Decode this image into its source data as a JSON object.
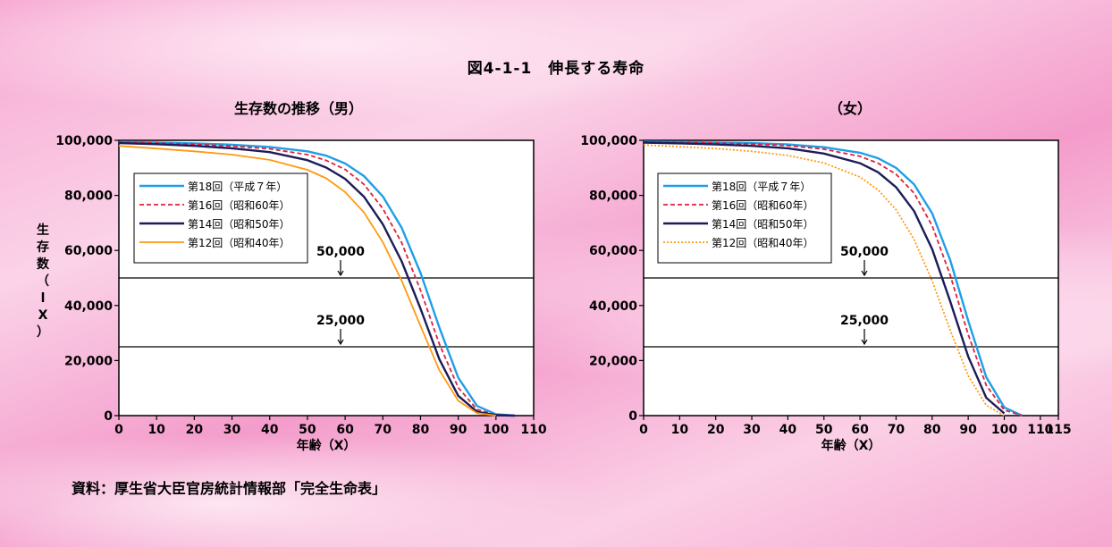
{
  "title": "図4-1-1　伸長する寿命",
  "source": "資料：厚生省大臣官房統計情報部「完全生命表」",
  "colors": {
    "s18": "#1e9fe6",
    "s16": "#e0203a",
    "s14": "#1c1c5a",
    "s12": "#ff9a10"
  },
  "chart_data": [
    {
      "type": "line",
      "subtitle": "生存数の推移（男）",
      "xlabel": "年齢（X）",
      "ylabel": "生存数（lX）",
      "xlim": [
        0,
        110
      ],
      "ylim": [
        0,
        100000
      ],
      "xticks": [
        0,
        10,
        20,
        30,
        40,
        50,
        60,
        70,
        80,
        90,
        100,
        110
      ],
      "yticks": [
        0,
        20000,
        40000,
        60000,
        80000,
        100000
      ],
      "ytick_labels": [
        "0",
        "20,000",
        "40,000",
        "60,000",
        "80,000",
        "100,000"
      ],
      "reference_lines": [
        {
          "y": 50000,
          "label": "50,000"
        },
        {
          "y": 25000,
          "label": "25,000"
        }
      ],
      "legend_position": "upper-left",
      "series": [
        {
          "name": "第18回（平成７年）",
          "color": "#1e9fe6",
          "dash": "solid",
          "x": [
            0,
            10,
            20,
            30,
            40,
            50,
            55,
            60,
            65,
            70,
            75,
            80,
            85,
            90,
            95,
            100,
            105
          ],
          "y": [
            99400,
            99200,
            98900,
            98400,
            97600,
            96000,
            94400,
            91600,
            87000,
            79600,
            68200,
            51800,
            32000,
            13800,
            3500,
            500,
            0
          ]
        },
        {
          "name": "第16回（昭和60年）",
          "color": "#e0203a",
          "dash": "dashed",
          "x": [
            0,
            10,
            20,
            30,
            40,
            50,
            55,
            60,
            65,
            70,
            75,
            80,
            85,
            90,
            95,
            100,
            105
          ],
          "y": [
            99300,
            99000,
            98600,
            97900,
            96900,
            94800,
            92700,
            89400,
            84000,
            75200,
            62800,
            45500,
            26000,
            10200,
            2200,
            300,
            0
          ]
        },
        {
          "name": "第14回（昭和50年）",
          "color": "#1c1c5a",
          "dash": "solid",
          "x": [
            0,
            10,
            20,
            30,
            40,
            50,
            55,
            60,
            65,
            70,
            75,
            80,
            85,
            90,
            95,
            100,
            105
          ],
          "y": [
            99000,
            98600,
            98000,
            97100,
            95700,
            92800,
            90100,
            86000,
            79500,
            69500,
            56000,
            38800,
            20500,
            7200,
            1400,
            150,
            0
          ]
        },
        {
          "name": "第12回（昭和40年）",
          "color": "#ff9a10",
          "dash": "solid",
          "x": [
            0,
            10,
            20,
            30,
            40,
            50,
            55,
            60,
            65,
            70,
            75,
            80,
            85,
            90,
            95,
            100
          ],
          "y": [
            98000,
            97000,
            96000,
            94800,
            92900,
            89300,
            86200,
            81200,
            73800,
            63000,
            49000,
            32500,
            16500,
            5400,
            900,
            0
          ]
        }
      ]
    },
    {
      "type": "line",
      "subtitle": "（女）",
      "xlabel": "年齢（X）",
      "xlim": [
        0,
        115
      ],
      "ylim": [
        0,
        100000
      ],
      "xticks": [
        0,
        10,
        20,
        30,
        40,
        50,
        60,
        70,
        80,
        90,
        100,
        110,
        115
      ],
      "yticks": [
        0,
        20000,
        40000,
        60000,
        80000,
        100000
      ],
      "ytick_labels": [
        "0",
        "20,000",
        "40,000",
        "60,000",
        "80,000",
        "100,000"
      ],
      "reference_lines": [
        {
          "y": 50000,
          "label": "50,000"
        },
        {
          "y": 25000,
          "label": "25,000"
        }
      ],
      "legend_position": "upper-left",
      "series": [
        {
          "name": "第18回（平成７年）",
          "color": "#1e9fe6",
          "dash": "solid",
          "x": [
            0,
            10,
            20,
            30,
            40,
            50,
            60,
            65,
            70,
            75,
            80,
            85,
            90,
            95,
            100,
            105
          ],
          "y": [
            99500,
            99400,
            99200,
            99000,
            98500,
            97500,
            95500,
            93500,
            90000,
            84000,
            73500,
            56500,
            34500,
            14000,
            3000,
            0
          ]
        },
        {
          "name": "第16回（昭和60年）",
          "color": "#e0203a",
          "dash": "dashed",
          "x": [
            0,
            10,
            20,
            30,
            40,
            50,
            60,
            65,
            70,
            75,
            80,
            85,
            90,
            95,
            100,
            105
          ],
          "y": [
            99400,
            99200,
            99000,
            98700,
            98100,
            96800,
            94200,
            91700,
            87700,
            80800,
            69000,
            51000,
            29500,
            11000,
            2000,
            0
          ]
        },
        {
          "name": "第14回（昭和50年）",
          "color": "#1c1c5a",
          "dash": "solid",
          "x": [
            0,
            10,
            20,
            30,
            40,
            50,
            60,
            65,
            70,
            75,
            80,
            85,
            90,
            95,
            100
          ],
          "y": [
            99200,
            98900,
            98500,
            98000,
            97100,
            95200,
            91700,
            88400,
            83000,
            74300,
            60500,
            41500,
            21500,
            6500,
            800
          ]
        },
        {
          "name": "第12回（昭和40年）",
          "color": "#ff9a10",
          "dash": "dotted",
          "x": [
            0,
            10,
            20,
            30,
            40,
            50,
            60,
            65,
            70,
            75,
            80,
            85,
            90,
            95,
            100
          ],
          "y": [
            98300,
            97700,
            97000,
            96000,
            94500,
            91800,
            86700,
            82000,
            74800,
            64000,
            49000,
            31000,
            14500,
            3800,
            0
          ]
        }
      ]
    }
  ]
}
